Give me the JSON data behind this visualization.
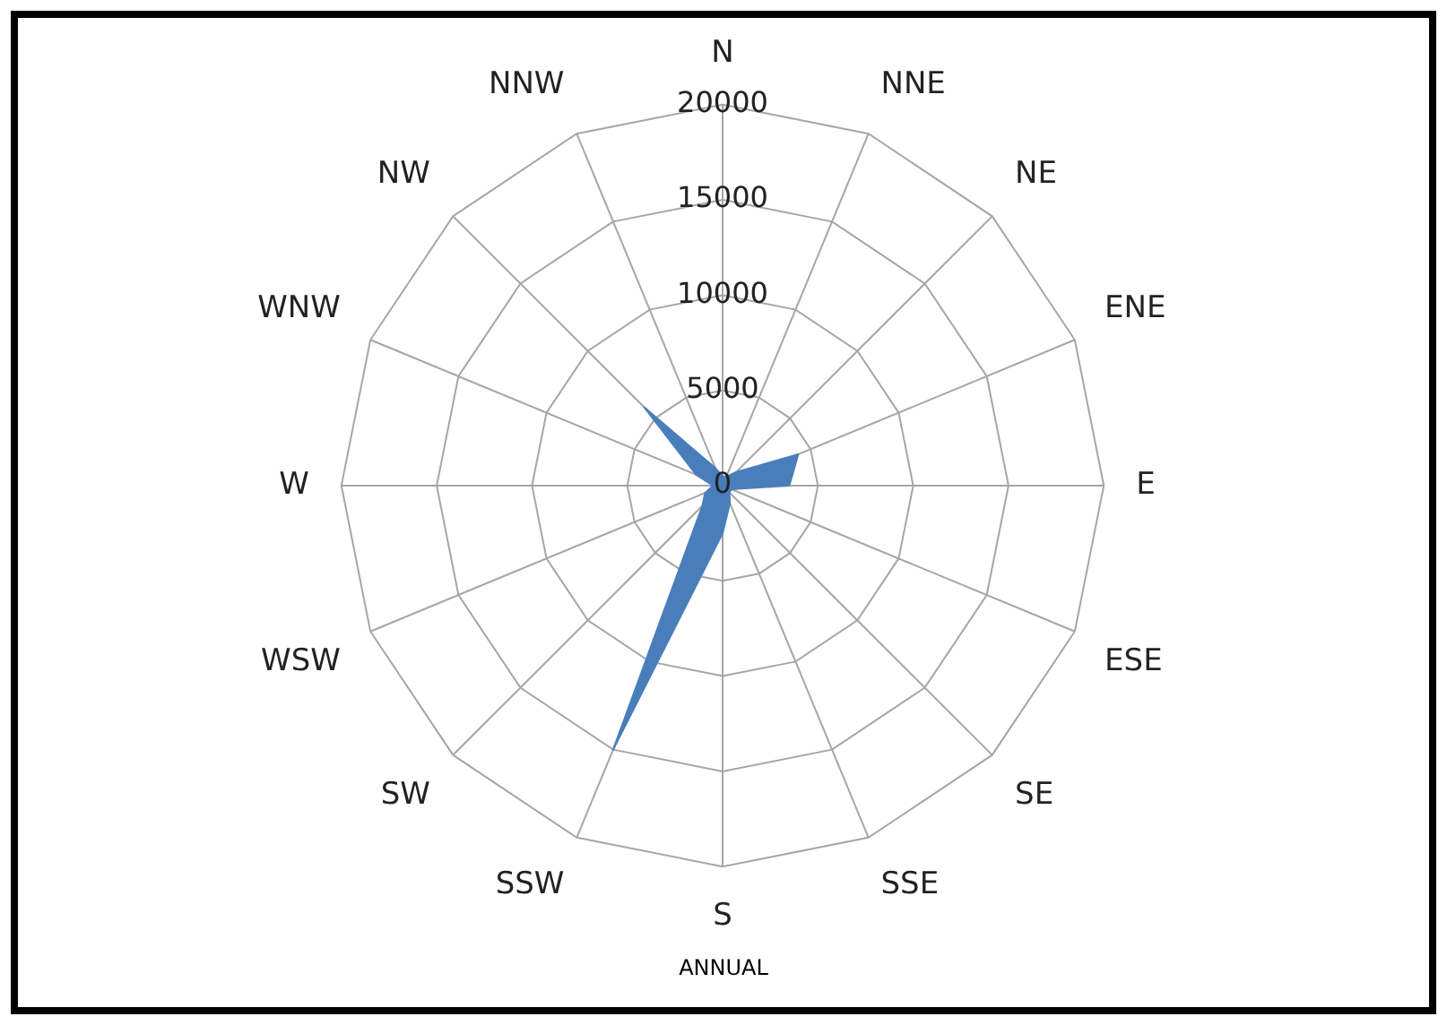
{
  "chart_data": {
    "type": "radar",
    "title": "ANNUAL",
    "categories": [
      "N",
      "NNE",
      "NE",
      "ENE",
      "E",
      "ESE",
      "SE",
      "SSE",
      "S",
      "SSW",
      "SW",
      "WSW",
      "W",
      "WNW",
      "NW",
      "NNW"
    ],
    "series": [
      {
        "color": "#4a7ebb",
        "values": [
          500,
          500,
          1000,
          4300,
          3500,
          500,
          500,
          1000,
          2500,
          15000,
          1500,
          1000,
          500,
          1500,
          5800,
          1000
        ]
      }
    ],
    "ylim": [
      0,
      20000
    ],
    "yticks": [
      0,
      5000,
      10000,
      15000,
      20000
    ],
    "grid": true,
    "legend": false
  }
}
